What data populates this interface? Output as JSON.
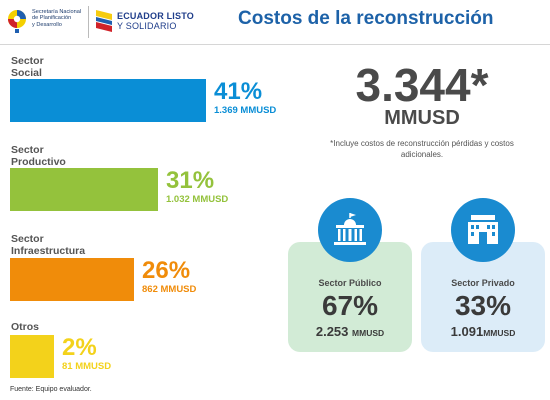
{
  "header": {
    "gov_logo_text": "Secretaría Nacional\nde Planificación\ny Desarrollo",
    "brand_line1": "ECUADOR LISTO",
    "brand_line2": "Y SOLIDARIO",
    "title": "Costos de la reconstrucción"
  },
  "colors": {
    "title": "#1d62a8",
    "social": "#0a8ed6",
    "productivo": "#94c23c",
    "infraestructura": "#f08c0a",
    "otros": "#f3d21b",
    "publico_card": "#d2ebd6",
    "privado_card": "#dcecf8",
    "icon_circle": "#1a8bd0"
  },
  "chart_data": {
    "type": "bar",
    "orientation": "horizontal",
    "categories": [
      "Sector Social",
      "Sector Productivo",
      "Sector Infraestructura",
      "Otros"
    ],
    "values": [
      41,
      31,
      26,
      2
    ],
    "unit": "%",
    "value_labels": [
      "41%",
      "31%",
      "26%",
      "2%"
    ],
    "amount_labels": [
      "1.369 MMUSD",
      "1.032 MMUSD",
      "862 MMUSD",
      "81 MMUSD"
    ]
  },
  "bars": [
    {
      "label_line1": "Sector",
      "label_line2": "Social",
      "pct": "41%",
      "amount": "1.369 MMUSD",
      "value": 41,
      "color": "#0a8ed6"
    },
    {
      "label_line1": "Sector",
      "label_line2": "Productivo",
      "pct": "31%",
      "amount": "1.032 MMUSD",
      "value": 31,
      "color": "#94c23c"
    },
    {
      "label_line1": "Sector",
      "label_line2": "Infraestructura",
      "pct": "26%",
      "amount": "862 MMUSD",
      "value": 26,
      "color": "#f08c0a"
    },
    {
      "label_line1": "Otros",
      "label_line2": "",
      "pct": "2%",
      "amount": "81 MMUSD",
      "value": 2,
      "color": "#f3d21b"
    }
  ],
  "total": {
    "value": "3.344*",
    "unit": "MMUSD",
    "note": "*Incluye costos de reconstrucción pérdidas y costos adicionales."
  },
  "sectors": {
    "publico": {
      "title": "Sector Público",
      "pct": "67%",
      "amount": "2.253",
      "unit": "MMUSD",
      "icon": "government-building-icon"
    },
    "privado": {
      "title": "Sector Privado",
      "pct": "33%",
      "amount": "1.091",
      "unit": "MMUSD",
      "icon": "factory-icon"
    }
  },
  "source": "Fuente: Equipo evaluador."
}
